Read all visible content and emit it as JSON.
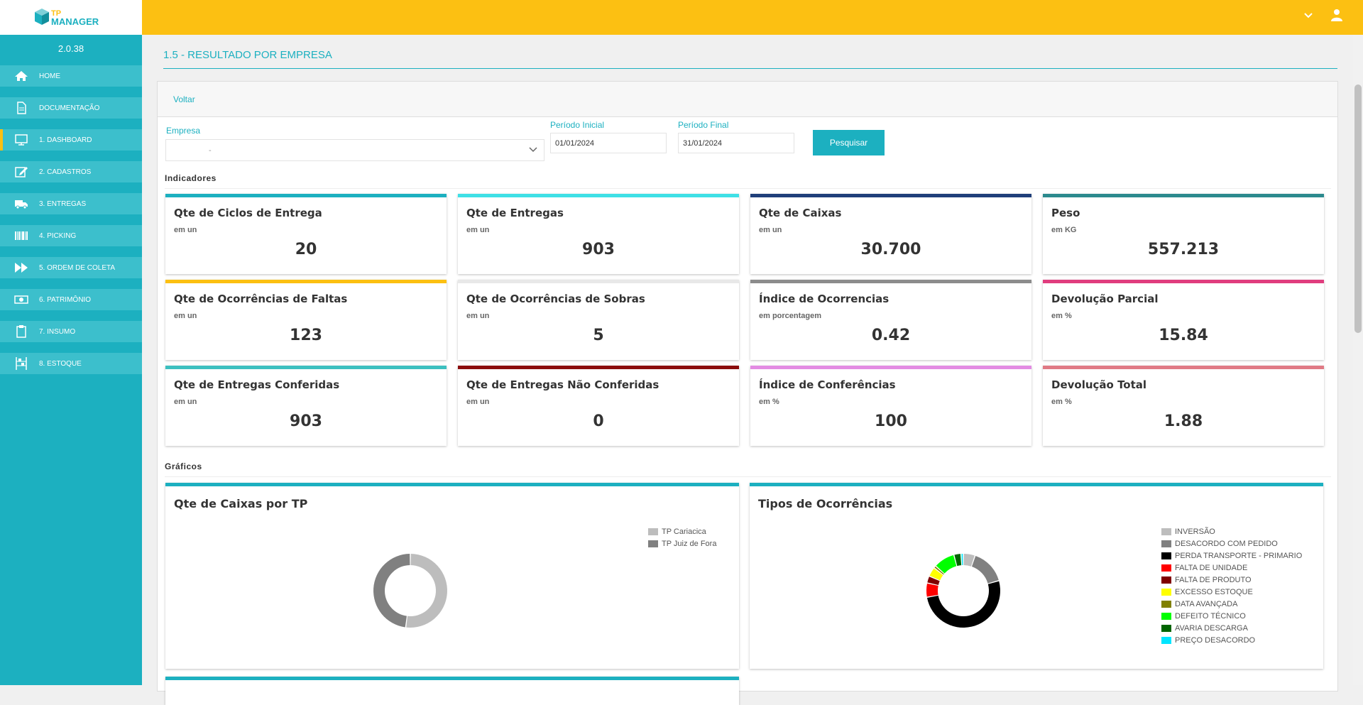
{
  "app": {
    "version": "2.0.38",
    "logo_text_top": "TP",
    "logo_text_bottom": "MANAGER"
  },
  "sidebar": {
    "items": [
      {
        "label": "HOME",
        "icon": "home-icon"
      },
      {
        "label": "DOCUMENTAÇÃO",
        "icon": "document-icon"
      },
      {
        "label": "1. DASHBOARD",
        "icon": "monitor-icon",
        "active": true
      },
      {
        "label": "2. CADASTROS",
        "icon": "edit-icon"
      },
      {
        "label": "3. ENTREGAS",
        "icon": "truck-icon"
      },
      {
        "label": "4. PICKING",
        "icon": "barcode-icon"
      },
      {
        "label": "5. ORDEM DE COLETA",
        "icon": "fast-forward-icon"
      },
      {
        "label": "6. PATRIMÔNIO",
        "icon": "money-icon"
      },
      {
        "label": "7. INSUMO",
        "icon": "clipboard-icon"
      },
      {
        "label": "8. ESTOQUE",
        "icon": "shelf-icon"
      }
    ]
  },
  "page": {
    "title": "1.5 - RESULTADO POR EMPRESA",
    "back_label": "Voltar"
  },
  "filters": {
    "empresa_label": "Empresa",
    "empresa_value": "-",
    "periodo_inicial_label": "Período Inicial",
    "periodo_inicial_value": "01/01/2024",
    "periodo_final_label": "Período Final",
    "periodo_final_value": "31/01/2024",
    "search_label": "Pesquisar"
  },
  "indicators_label": "Indicadores",
  "charts_label": "Gráficos",
  "kpis": [
    {
      "title": "Qte de Ciclos de Entrega",
      "unit": "em un",
      "value": "20",
      "color": "#1cb0c0"
    },
    {
      "title": "Qte de Entregas",
      "unit": "em un",
      "value": "903",
      "color": "#3fe0e6"
    },
    {
      "title": "Qte de Caixas",
      "unit": "em un",
      "value": "30.700",
      "color": "#1f3f7a"
    },
    {
      "title": "Peso",
      "unit": "em KG",
      "value": "557.213",
      "color": "#2c8a8e"
    },
    {
      "title": "Qte de Ocorrências de Faltas",
      "unit": "em un",
      "value": "123",
      "color": "#fcc012"
    },
    {
      "title": "Qte de Ocorrências de Sobras",
      "unit": "em un",
      "value": "5",
      "color": "#e8e8e8"
    },
    {
      "title": "Índice de Ocorrencias",
      "unit": "em porcentagem",
      "value": "0.42",
      "color": "#8c8c8c"
    },
    {
      "title": "Devolução Parcial",
      "unit": "em %",
      "value": "15.84",
      "color": "#e03d7e"
    },
    {
      "title": "Qte de Entregas Conferidas",
      "unit": "em un",
      "value": "903",
      "color": "#3cc0c0"
    },
    {
      "title": "Qte de Entregas Não Conferidas",
      "unit": "em un",
      "value": "0",
      "color": "#8b0d0d"
    },
    {
      "title": "Índice de Conferências",
      "unit": "em %",
      "value": "100",
      "color": "#e38be3"
    },
    {
      "title": "Devolução Total",
      "unit": "em %",
      "value": "1.88",
      "color": "#e07a85"
    }
  ],
  "chart_data": [
    {
      "type": "pie",
      "title": "Qte de Caixas por TP",
      "categories": [
        "TP Cariacica",
        "TP Juiz de Fora"
      ],
      "values": [
        52,
        48
      ],
      "colors": [
        "#bdbdbd",
        "#808080"
      ],
      "legend": "top-right"
    },
    {
      "type": "pie",
      "title": "Tipos de Ocorrências",
      "categories": [
        "INVERSÃO",
        "DESACORDO COM PEDIDO",
        "PERDA TRANSPORTE - PRIMARIO",
        "FALTA DE UNIDADE",
        "FALTA DE PRODUTO",
        "EXCESSO ESTOQUE",
        "DATA AVANÇADA",
        "DEFEITO TÉCNICO",
        "AVARIA DESCARGA",
        "PREÇO DESACORDO"
      ],
      "values": [
        5,
        15,
        50,
        6,
        3,
        4,
        1,
        9,
        3,
        1
      ],
      "colors": [
        "#bdbdbd",
        "#808080",
        "#000000",
        "#ff0000",
        "#800000",
        "#ffff00",
        "#808000",
        "#00ff00",
        "#006400",
        "#00e5ff"
      ],
      "legend": "top-right"
    }
  ]
}
